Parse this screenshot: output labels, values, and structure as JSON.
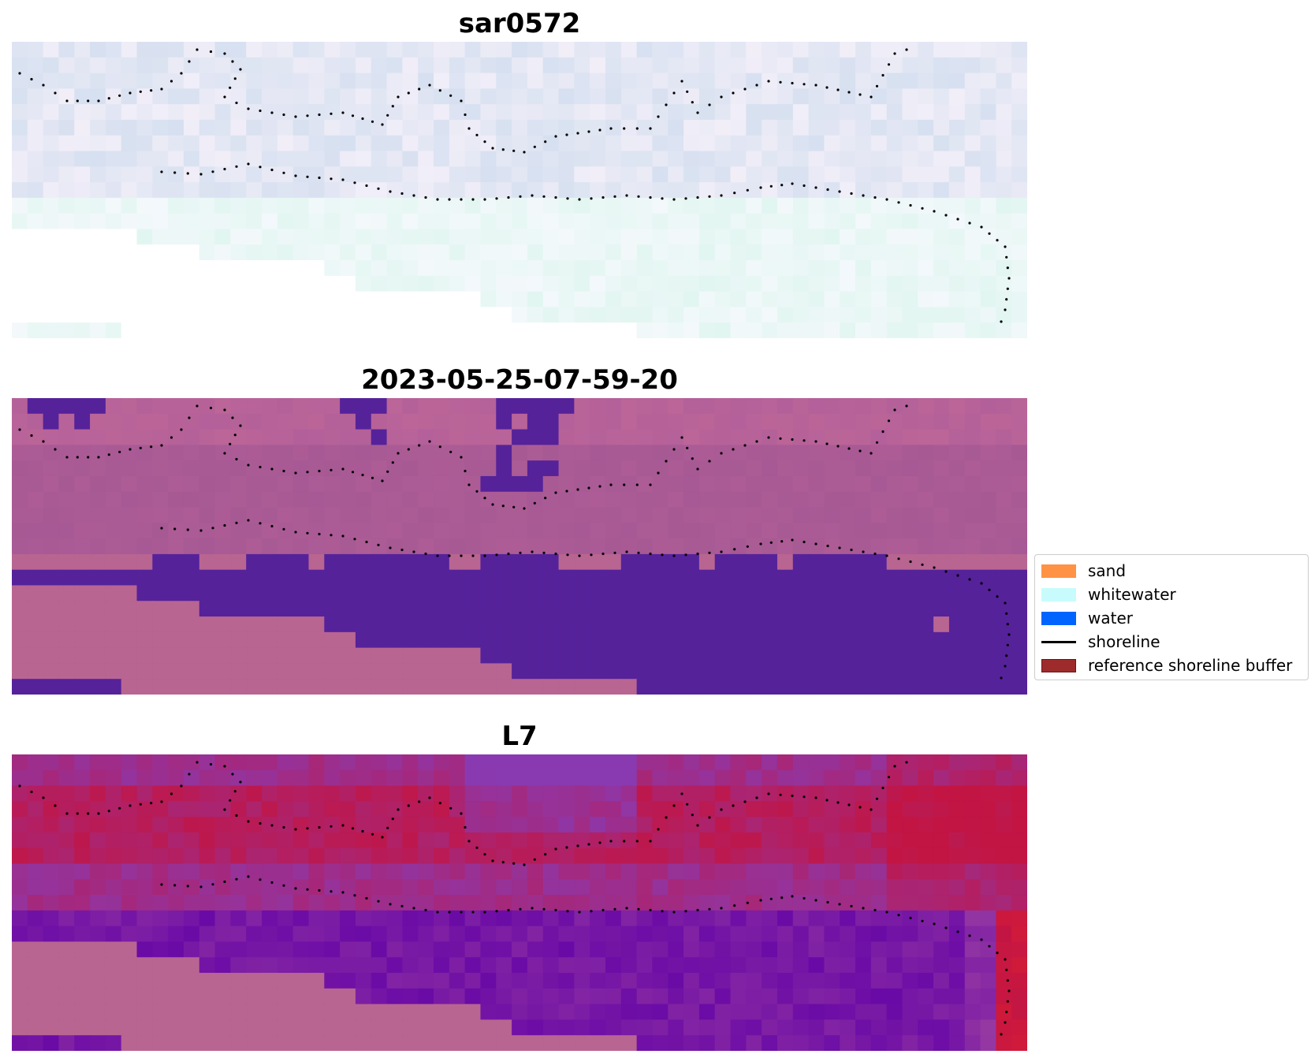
{
  "panels": [
    {
      "title": "sar0572",
      "style": "sar"
    },
    {
      "title": "2023-05-25-07-59-20",
      "style": "classified"
    },
    {
      "title": "L7",
      "style": "index"
    }
  ],
  "legend": {
    "items": [
      {
        "label": "sand",
        "kind": "patch",
        "color": "#ff9245"
      },
      {
        "label": "whitewater",
        "kind": "patch",
        "color": "#c8fcfc"
      },
      {
        "label": "water",
        "kind": "patch",
        "color": "#0064ff"
      },
      {
        "label": "shoreline",
        "kind": "line",
        "color": "#000000"
      },
      {
        "label": "reference shoreline buffer",
        "kind": "patch",
        "color": "#9e2b2b"
      }
    ]
  },
  "colors": {
    "nodata": "#ffffff",
    "land_pink": "#b86592",
    "water_purple": "#55229a",
    "shore_band": "#a65994",
    "index_red": "#c21544",
    "index_purple": "#6a0aa6"
  }
}
